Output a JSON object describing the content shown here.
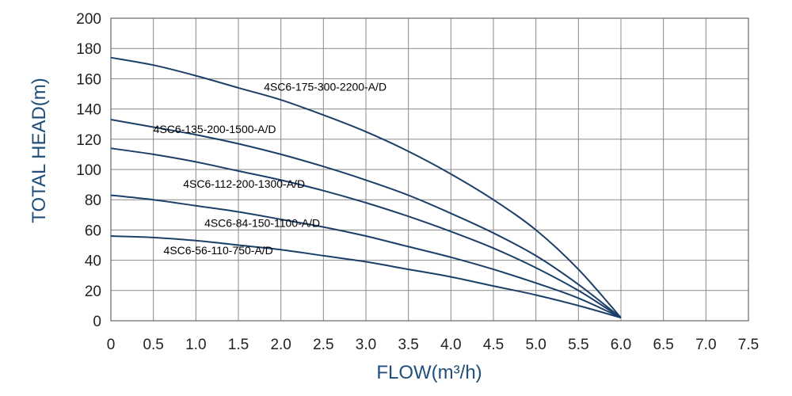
{
  "chart_data": {
    "type": "line",
    "xlabel": "FLOW(m³/h)",
    "ylabel": "TOTAL HEAD(m)",
    "xlim": [
      0,
      7.5
    ],
    "ylim": [
      0,
      200
    ],
    "x_ticks": [
      "0",
      "0.5",
      "1.0",
      "1.5",
      "2.0",
      "2.5",
      "3.0",
      "3.5",
      "4.0",
      "4.5",
      "5.0",
      "5.5",
      "6.0",
      "6.5",
      "7.0",
      "7.5"
    ],
    "y_ticks": [
      "0",
      "20",
      "40",
      "60",
      "80",
      "100",
      "120",
      "140",
      "160",
      "180",
      "200"
    ],
    "grid": true,
    "line_color": "#1b3f68",
    "grid_color": "#888888",
    "series": [
      {
        "name": "4SC6-175-300-2200-A/D",
        "x": [
          0,
          0.5,
          1.0,
          1.5,
          2.0,
          2.5,
          3.0,
          3.5,
          4.0,
          4.5,
          5.0,
          5.5,
          6.0
        ],
        "y": [
          174,
          169,
          162,
          154,
          146,
          136,
          125,
          112,
          97,
          80,
          60,
          34,
          2
        ]
      },
      {
        "name": "4SC6-135-200-1500-A/D",
        "x": [
          0,
          0.5,
          1.0,
          1.5,
          2.0,
          2.5,
          3.0,
          3.5,
          4.0,
          4.5,
          5.0,
          5.5,
          6.0
        ],
        "y": [
          133,
          128,
          123,
          117,
          110,
          102,
          93,
          83,
          71,
          58,
          43,
          24,
          2
        ]
      },
      {
        "name": "4SC6-112-200-1300-A/D",
        "x": [
          0,
          0.5,
          1.0,
          1.5,
          2.0,
          2.5,
          3.0,
          3.5,
          4.0,
          4.5,
          5.0,
          5.5,
          6.0
        ],
        "y": [
          114,
          110,
          105,
          99,
          93,
          86,
          78,
          69,
          59,
          48,
          35,
          20,
          2
        ]
      },
      {
        "name": "4SC6-84-150-1100-A/D",
        "x": [
          0,
          0.5,
          1.0,
          1.5,
          2.0,
          2.5,
          3.0,
          3.5,
          4.0,
          4.5,
          5.0,
          5.5,
          6.0
        ],
        "y": [
          83,
          80,
          76,
          72,
          67,
          62,
          56,
          49,
          42,
          34,
          25,
          15,
          2
        ]
      },
      {
        "name": "4SC6-56-110-750-A/D",
        "x": [
          0,
          0.5,
          1.0,
          1.5,
          2.0,
          2.5,
          3.0,
          3.5,
          4.0,
          4.5,
          5.0,
          5.5,
          6.0
        ],
        "y": [
          56,
          55,
          53,
          50,
          47,
          43,
          39,
          34,
          29,
          23,
          17,
          10,
          2
        ]
      }
    ],
    "series_label_positions": [
      {
        "x": 1.8,
        "y": 152
      },
      {
        "x": 0.5,
        "y": 124
      },
      {
        "x": 0.85,
        "y": 88
      },
      {
        "x": 1.1,
        "y": 62
      },
      {
        "x": 0.62,
        "y": 44
      }
    ]
  }
}
